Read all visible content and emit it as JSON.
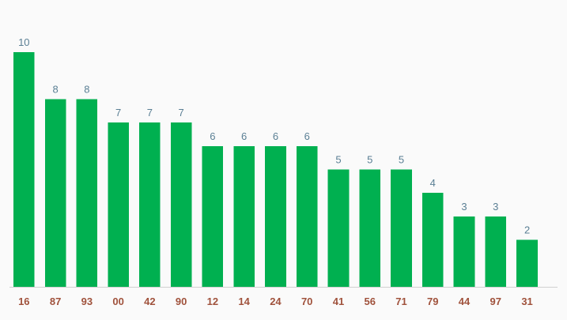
{
  "chart_data": {
    "type": "bar",
    "title": "",
    "xlabel": "",
    "ylabel": "",
    "categories": [
      "16",
      "87",
      "93",
      "00",
      "42",
      "90",
      "12",
      "14",
      "24",
      "70",
      "41",
      "56",
      "71",
      "79",
      "44",
      "97",
      "31"
    ],
    "values": [
      10,
      8,
      8,
      7,
      7,
      7,
      6,
      6,
      6,
      6,
      5,
      5,
      5,
      4,
      3,
      3,
      2
    ],
    "ylim": [
      0,
      10
    ],
    "grid": false,
    "legend": "none",
    "data_labels": true,
    "colors": {
      "bar": "#00b050",
      "value_label": "#5a7f94",
      "category_label": "#a0523c",
      "baseline": "#d0d0d0",
      "background": "#fafafa"
    }
  }
}
